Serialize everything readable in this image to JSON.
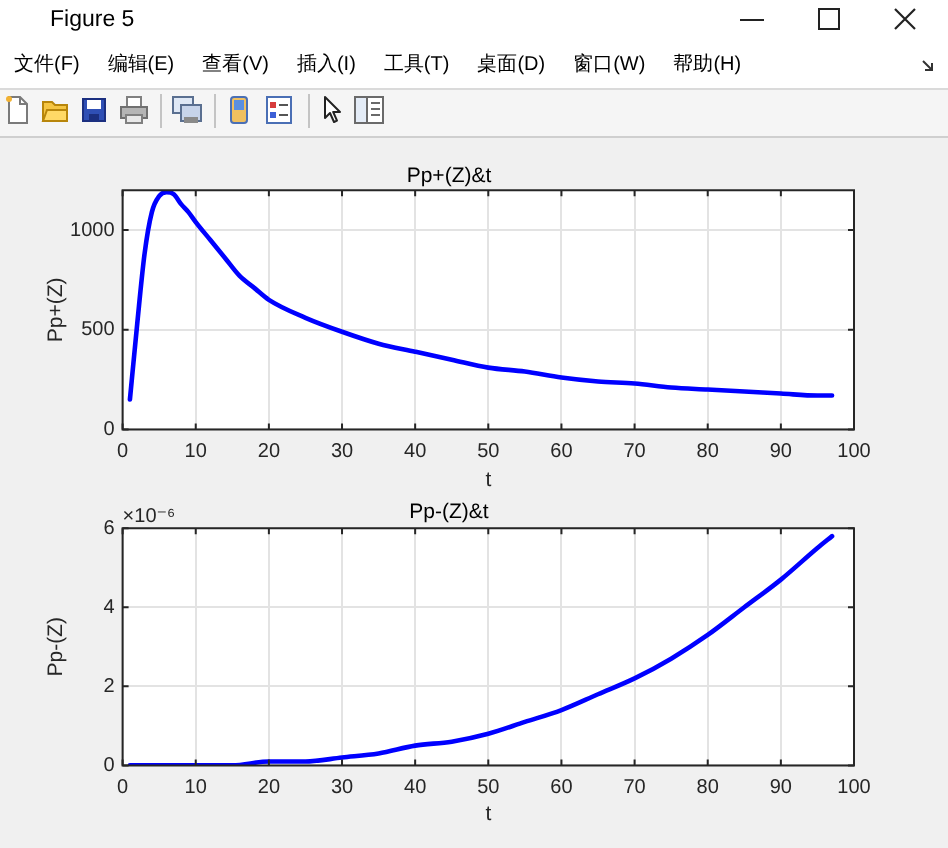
{
  "chart_data": [
    {
      "type": "other",
      "title": "Figure 5",
      "annotations": [
        "文件(F)",
        "编辑(E)",
        "查看(V)",
        "插入(I)",
        "工具(T)",
        "桌面(D)",
        "窗口(W)",
        "帮助(H)"
      ]
    },
    {
      "type": "line",
      "title": "Pp+(Z)&t",
      "xlabel": "t",
      "ylabel": "Pp+(Z)",
      "x": [
        1,
        2,
        3,
        4,
        5,
        6,
        7,
        8,
        9,
        10,
        12,
        14,
        16,
        18,
        20,
        25,
        30,
        35,
        40,
        45,
        50,
        55,
        60,
        65,
        70,
        75,
        80,
        85,
        90,
        95,
        97
      ],
      "values": [
        150,
        530,
        880,
        1090,
        1170,
        1190,
        1180,
        1130,
        1090,
        1040,
        950,
        860,
        770,
        710,
        650,
        560,
        490,
        430,
        390,
        350,
        310,
        290,
        260,
        240,
        230,
        210,
        200,
        190,
        180,
        170,
        170
      ],
      "color": "#0000ff",
      "xlim": [
        0,
        100
      ],
      "xticks": [
        0,
        10,
        20,
        30,
        40,
        50,
        60,
        70,
        80,
        90,
        100
      ],
      "ylim": [
        0,
        1200
      ],
      "yticks": [
        0,
        500,
        1000
      ],
      "grid": true
    },
    {
      "type": "line",
      "title": "Pp-(Z)&t",
      "xlabel": "t",
      "ylabel": "Pp-(Z)",
      "annotations": [
        "×10⁻⁶"
      ],
      "x": [
        1,
        5,
        10,
        15,
        20,
        25,
        30,
        35,
        40,
        45,
        50,
        55,
        60,
        65,
        70,
        75,
        80,
        85,
        90,
        95,
        97
      ],
      "values": [
        0,
        0,
        0,
        0,
        0.1,
        0.1,
        0.2,
        0.3,
        0.5,
        0.6,
        0.8,
        1.1,
        1.4,
        1.8,
        2.2,
        2.7,
        3.3,
        4,
        4.7,
        5.5,
        5.8
      ],
      "color": "#0000ff",
      "xlim": [
        0,
        100
      ],
      "xticks": [
        0,
        10,
        20,
        30,
        40,
        50,
        60,
        70,
        80,
        90,
        100
      ],
      "ylim": [
        0,
        6
      ],
      "yticks": [
        0,
        2,
        4,
        6
      ],
      "grid": true
    }
  ]
}
